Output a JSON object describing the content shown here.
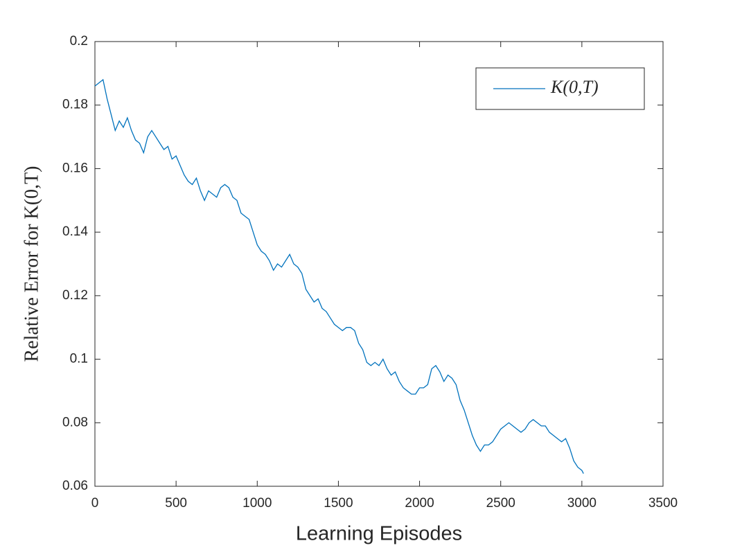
{
  "chart_data": {
    "type": "line",
    "x_label": "Learning Episodes",
    "y_label": "Relative Error for K(0,T)",
    "xlim": [
      0,
      3500
    ],
    "xticks": [
      0,
      500,
      1000,
      1500,
      2000,
      2500,
      3000,
      3500
    ],
    "ylim": [
      0.06,
      0.2
    ],
    "yticks": [
      0.06,
      0.08,
      0.1,
      0.12,
      0.14,
      0.16,
      0.18,
      0.2
    ],
    "legend": "upper right",
    "x": [
      0,
      25,
      50,
      75,
      100,
      125,
      150,
      175,
      200,
      225,
      250,
      275,
      300,
      325,
      350,
      375,
      400,
      425,
      450,
      475,
      500,
      525,
      550,
      575,
      600,
      625,
      650,
      675,
      700,
      725,
      750,
      775,
      800,
      825,
      850,
      875,
      900,
      925,
      950,
      975,
      1000,
      1025,
      1050,
      1075,
      1100,
      1125,
      1150,
      1175,
      1200,
      1225,
      1250,
      1275,
      1300,
      1325,
      1350,
      1375,
      1400,
      1425,
      1450,
      1475,
      1500,
      1525,
      1550,
      1575,
      1600,
      1625,
      1650,
      1675,
      1700,
      1725,
      1750,
      1775,
      1800,
      1825,
      1850,
      1875,
      1900,
      1925,
      1950,
      1975,
      2000,
      2025,
      2050,
      2075,
      2100,
      2125,
      2150,
      2175,
      2200,
      2225,
      2250,
      2275,
      2300,
      2325,
      2350,
      2375,
      2400,
      2425,
      2450,
      2475,
      2500,
      2525,
      2550,
      2575,
      2600,
      2625,
      2650,
      2675,
      2700,
      2725,
      2750,
      2775,
      2800,
      2825,
      2850,
      2875,
      2900,
      2925,
      2950,
      2975,
      3000,
      3010
    ],
    "series": [
      {
        "name": "K(0,T)",
        "color": "#0072bd",
        "values": [
          0.186,
          0.187,
          0.188,
          0.182,
          0.177,
          0.172,
          0.175,
          0.173,
          0.176,
          0.172,
          0.169,
          0.168,
          0.165,
          0.17,
          0.172,
          0.17,
          0.168,
          0.166,
          0.167,
          0.163,
          0.164,
          0.161,
          0.158,
          0.156,
          0.155,
          0.157,
          0.153,
          0.15,
          0.153,
          0.152,
          0.151,
          0.154,
          0.155,
          0.154,
          0.151,
          0.15,
          0.146,
          0.145,
          0.144,
          0.14,
          0.136,
          0.134,
          0.133,
          0.131,
          0.128,
          0.13,
          0.129,
          0.131,
          0.133,
          0.13,
          0.129,
          0.127,
          0.122,
          0.12,
          0.118,
          0.119,
          0.116,
          0.115,
          0.113,
          0.111,
          0.11,
          0.109,
          0.11,
          0.11,
          0.109,
          0.105,
          0.103,
          0.099,
          0.098,
          0.099,
          0.098,
          0.1,
          0.097,
          0.095,
          0.096,
          0.093,
          0.091,
          0.09,
          0.089,
          0.089,
          0.091,
          0.091,
          0.092,
          0.097,
          0.098,
          0.096,
          0.093,
          0.095,
          0.094,
          0.092,
          0.087,
          0.084,
          0.08,
          0.076,
          0.073,
          0.071,
          0.073,
          0.073,
          0.074,
          0.076,
          0.078,
          0.079,
          0.08,
          0.079,
          0.078,
          0.077,
          0.078,
          0.08,
          0.081,
          0.08,
          0.079,
          0.079,
          0.077,
          0.076,
          0.075,
          0.074,
          0.075,
          0.072,
          0.068,
          0.066,
          0.065,
          0.064
        ]
      }
    ]
  }
}
